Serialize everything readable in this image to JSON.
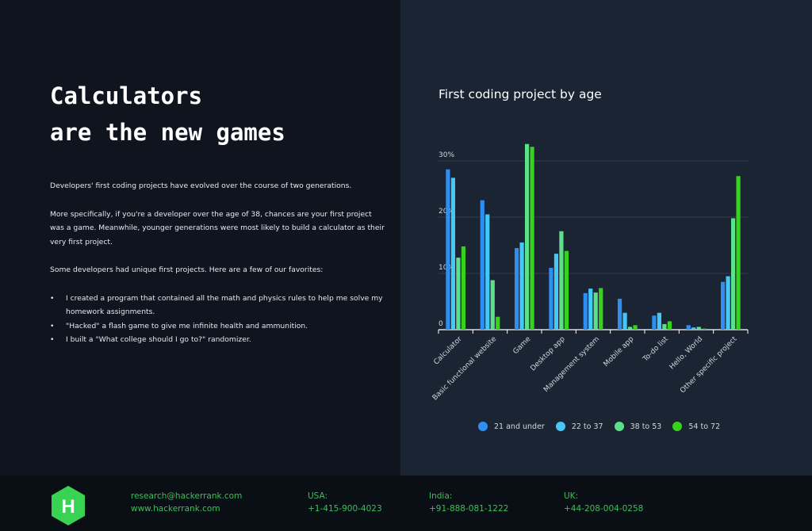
{
  "headline": {
    "line1": "Calculators",
    "line2": "are the new games"
  },
  "body": {
    "p1": "Developers' first coding projects have evolved over the course of two generations.",
    "p2": "More specifically, if you're a developer over the age of 38, chances are your first project was a game. Meanwhile, younger generations were most likely to build a calculator as their very first project.",
    "p3": "Some developers had unique first projects. Here are a few of our favorites:",
    "bullets": [
      "I created a program that contained all the math and physics rules to help me solve my homework assignments.",
      "\"Hacked\" a flash game to give me infinite health and ammunition.",
      "I built a \"What college should I go to?\" randomizer."
    ]
  },
  "chart_data": {
    "type": "bar",
    "title": "First coding project by age",
    "categories": [
      "Calculator",
      "Basic functional website",
      "Game",
      "Desktop app",
      "Management system",
      "Mobile app",
      "To-do list",
      "Hello, World",
      "Other specific project"
    ],
    "series": [
      {
        "name": "21 and under",
        "color": "#2f8ff0",
        "values": [
          28.5,
          23,
          14.5,
          11,
          6.5,
          5.5,
          2.5,
          0.8,
          8.5
        ]
      },
      {
        "name": "22 to 37",
        "color": "#45c8f5",
        "values": [
          27,
          20.5,
          15.5,
          13.5,
          7.3,
          3,
          3,
          0.4,
          9.5
        ]
      },
      {
        "name": "38 to 53",
        "color": "#5de08a",
        "values": [
          12.8,
          8.8,
          33,
          17.5,
          6.6,
          0.5,
          1,
          0.5,
          19.8
        ]
      },
      {
        "name": "54 to 72",
        "color": "#38d11c",
        "values": [
          14.8,
          2.3,
          32.5,
          14,
          7.4,
          0.8,
          1.5,
          0.2,
          27.3
        ]
      }
    ],
    "yticks": [
      "0",
      "10%",
      "20%",
      "30%"
    ],
    "ytick_values": [
      0,
      10,
      20,
      30
    ],
    "ylim": [
      0,
      33
    ],
    "grid": true,
    "legend_position": "bottom"
  },
  "footer": {
    "email": "research@hackerrank.com",
    "website": "www.hackerrank.com",
    "usa_label": "USA:",
    "usa_phone": "+1-415-900-4023",
    "india_label": "India:",
    "india_phone": "+91-888-081-1222",
    "uk_label": "UK:",
    "uk_phone": "+44-208-004-0258",
    "logo_letter": "H",
    "logo_color": "#39d353"
  }
}
